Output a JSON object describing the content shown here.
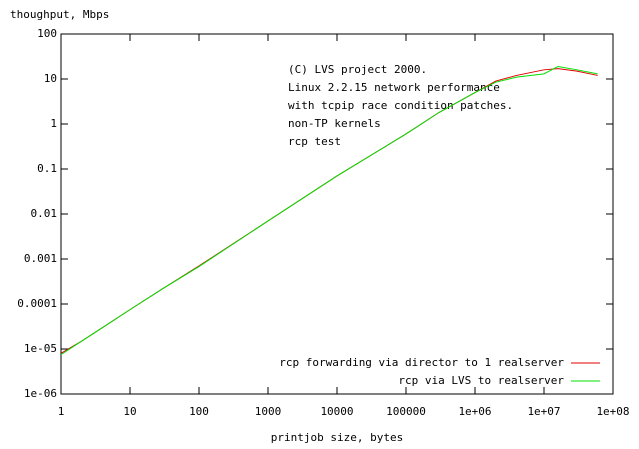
{
  "chart_data": {
    "type": "line",
    "ylabel": "thoughput, Mbps",
    "xlabel": "printjob size, bytes",
    "annotations": [
      "(C) LVS project 2000.",
      "Linux 2.2.15 network performance",
      "with tcpip race condition patches.",
      "non-TP kernels",
      "rcp test"
    ],
    "xlog": true,
    "ylog": true,
    "xlim": [
      1,
      100000000
    ],
    "ylim": [
      1e-06,
      100
    ],
    "xticks": [
      1,
      10,
      100,
      1000,
      10000,
      100000,
      {
        "value": 1000000,
        "label": "1e+06"
      },
      {
        "value": 10000000,
        "label": "1e+07"
      },
      {
        "value": 100000000,
        "label": "1e+08"
      }
    ],
    "yticks": [
      {
        "value": 1e-06,
        "label": "1e-06"
      },
      {
        "value": 1e-05,
        "label": "1e-05"
      },
      0.0001,
      0.001,
      0.01,
      0.1,
      1,
      10,
      100
    ],
    "legend": "bottom-right",
    "x": [
      1,
      2,
      4,
      10,
      30,
      100,
      1000,
      10000,
      100000,
      300000,
      1000000,
      2000000,
      4000000,
      10000000,
      16000000,
      30000000,
      60000000
    ],
    "series": [
      {
        "name": "rcp forwarding via director to 1 realserver",
        "color": "#e00000",
        "values": [
          8e-06,
          1.5e-05,
          3e-05,
          7.5e-05,
          0.00022,
          0.0007,
          0.007,
          0.07,
          0.6,
          1.8,
          5,
          9,
          12,
          16,
          17,
          15,
          12
        ]
      },
      {
        "name": "rcp via LVS to realserver",
        "color": "#00e000",
        "values": [
          7.5e-06,
          1.5e-05,
          3e-05,
          7.5e-05,
          0.00022,
          0.00068,
          0.007,
          0.07,
          0.6,
          1.8,
          5,
          8.5,
          11,
          13,
          19,
          16,
          13
        ]
      }
    ]
  }
}
